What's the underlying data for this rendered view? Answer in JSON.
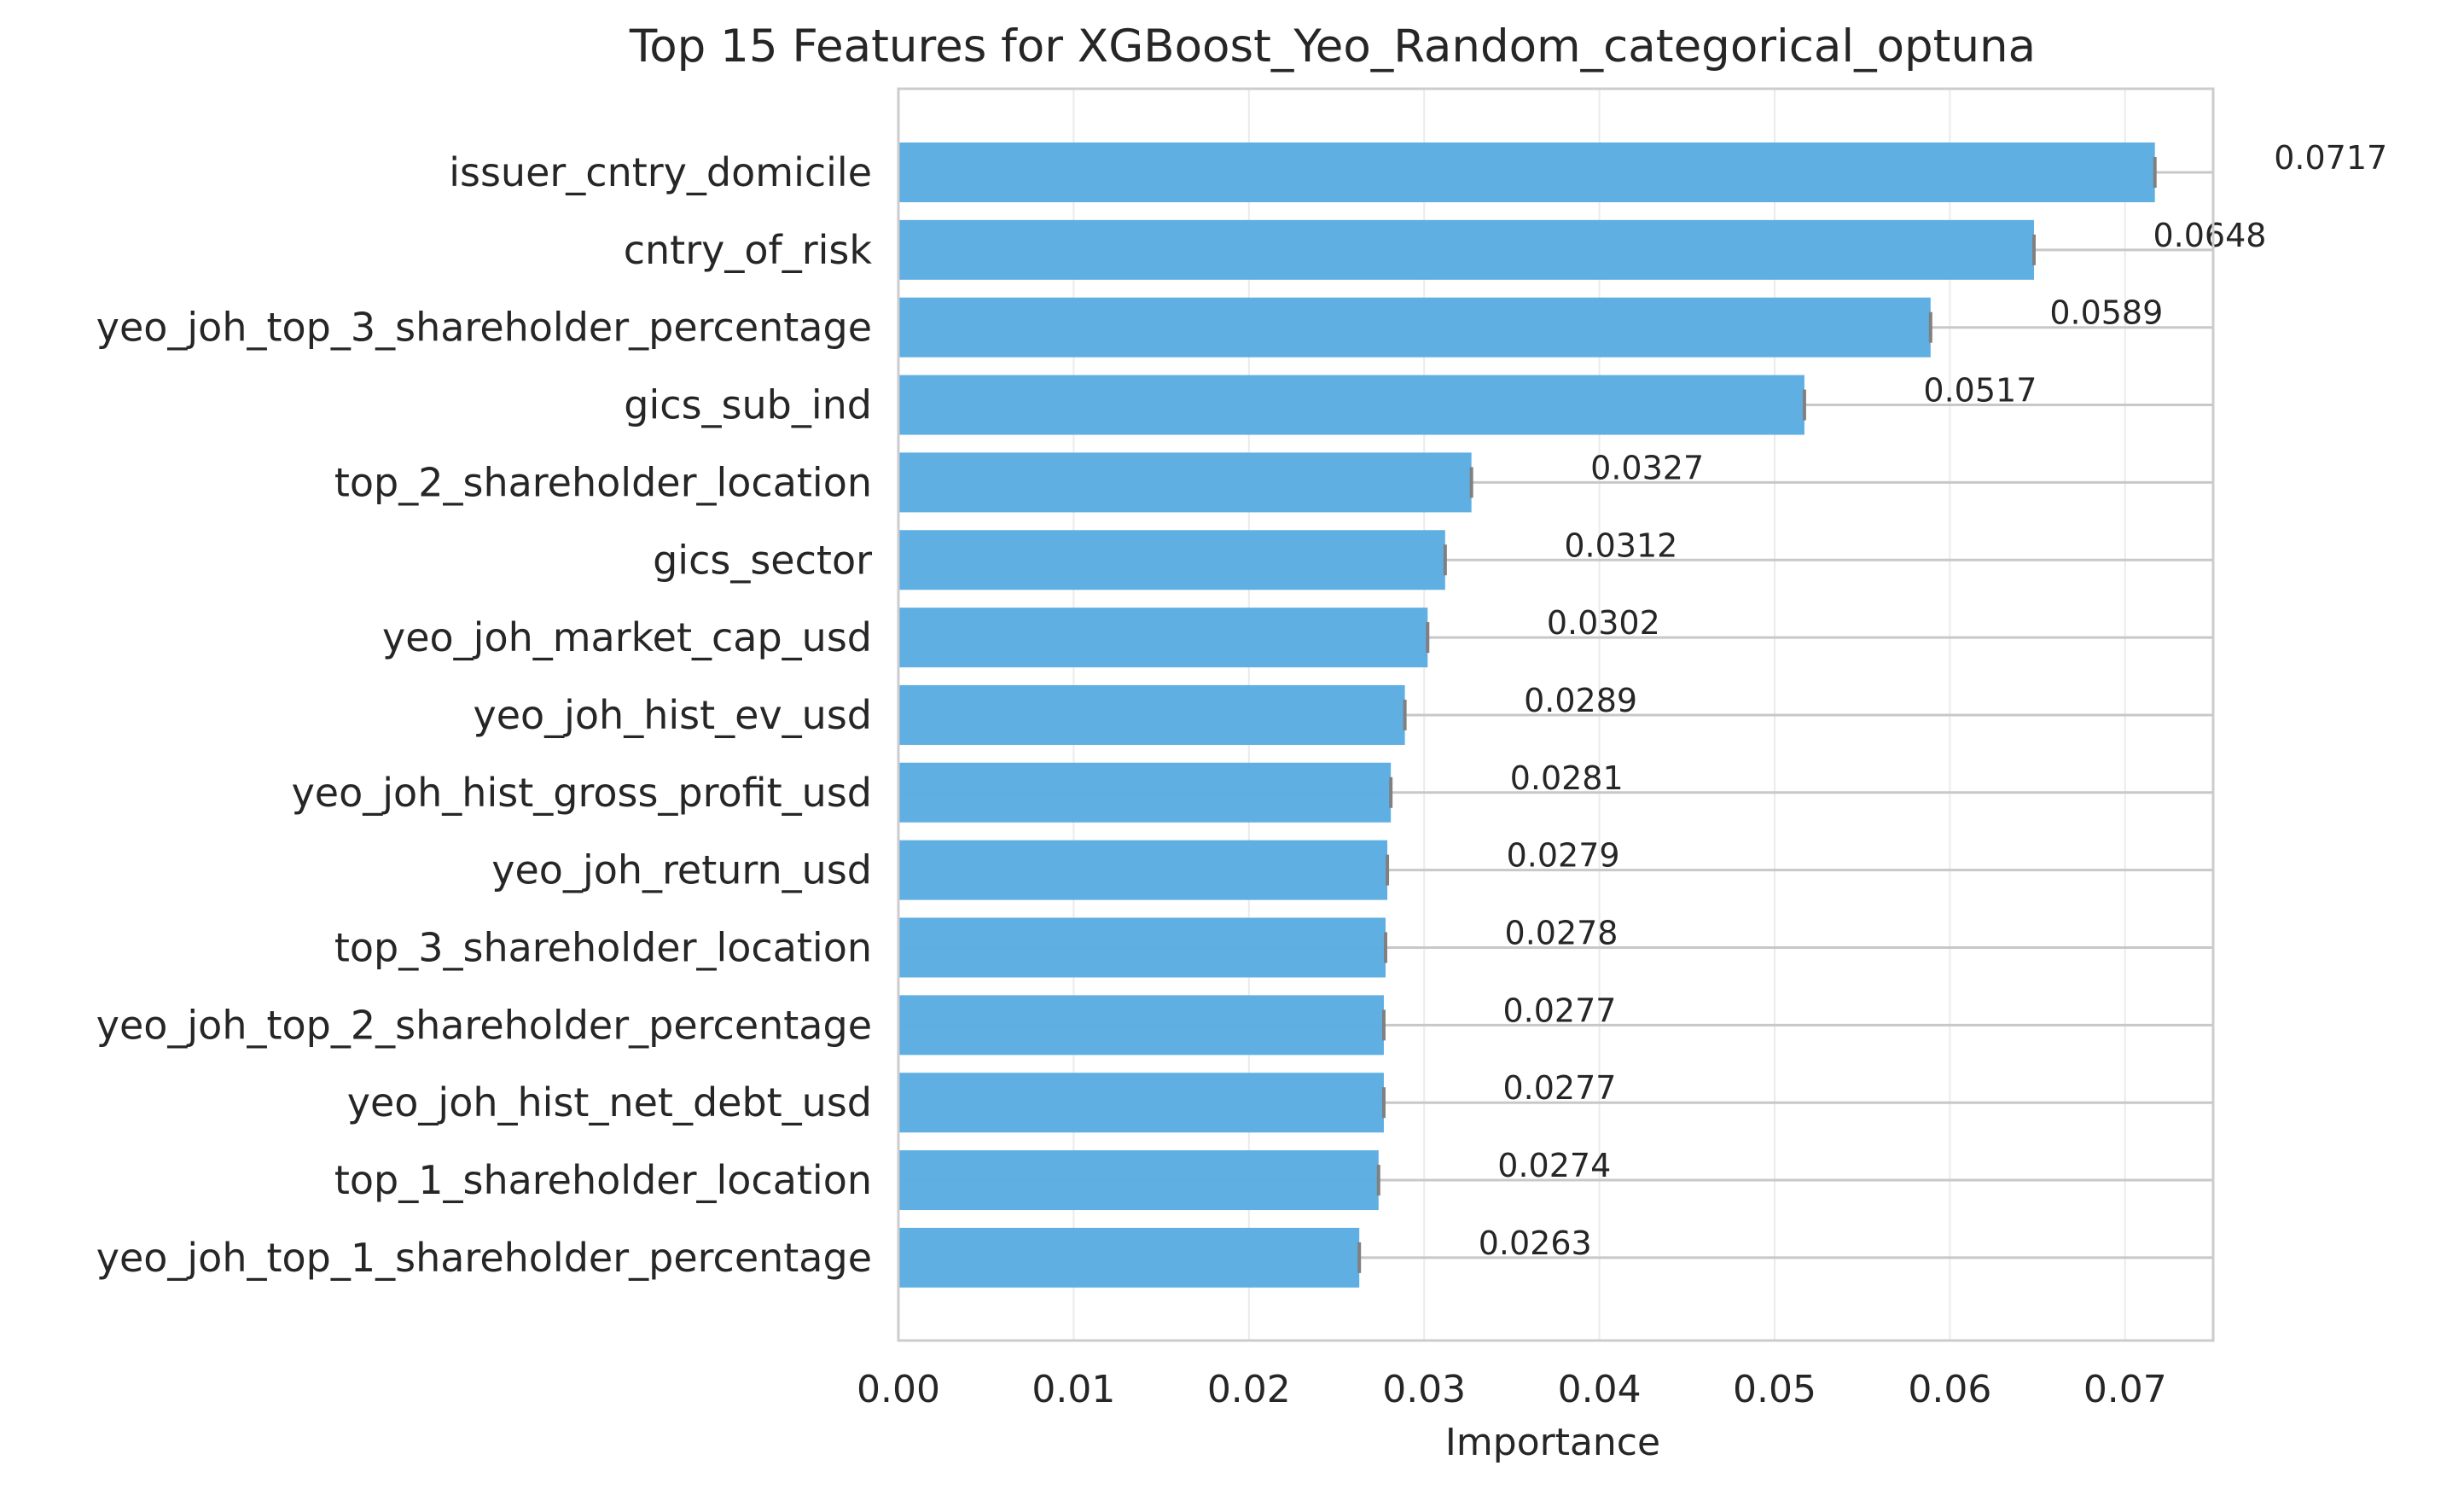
{
  "chart_data": {
    "type": "bar",
    "orientation": "horizontal",
    "title": "Top 15 Features for XGBoost_Yeo_Random_categorical_optuna",
    "xlabel": "Importance",
    "ylabel": "",
    "xlim": [
      0,
      0.075
    ],
    "xticks": [
      0.0,
      0.01,
      0.02,
      0.03,
      0.04,
      0.05,
      0.06,
      0.07
    ],
    "xtick_labels": [
      "0.00",
      "0.01",
      "0.02",
      "0.03",
      "0.04",
      "0.05",
      "0.06",
      "0.07"
    ],
    "grid": true,
    "bar_color": "#5DADE2",
    "error_bar_color": "#808080",
    "categories": [
      "issuer_cntry_domicile",
      "cntry_of_risk",
      "yeo_joh_top_3_shareholder_percentage",
      "gics_sub_ind",
      "top_2_shareholder_location",
      "gics_sector",
      "yeo_joh_market_cap_usd",
      "yeo_joh_hist_ev_usd",
      "yeo_joh_hist_gross_profit_usd",
      "yeo_joh_return_usd",
      "top_3_shareholder_location",
      "yeo_joh_top_2_shareholder_percentage",
      "yeo_joh_hist_net_debt_usd",
      "top_1_shareholder_location",
      "yeo_joh_top_1_shareholder_percentage"
    ],
    "values": [
      0.0717,
      0.0648,
      0.0589,
      0.0517,
      0.0327,
      0.0312,
      0.0302,
      0.0289,
      0.0281,
      0.0279,
      0.0278,
      0.0277,
      0.0277,
      0.0274,
      0.0263
    ],
    "value_labels": [
      "0.0717",
      "0.0648",
      "0.0589",
      "0.0517",
      "0.0327",
      "0.0312",
      "0.0302",
      "0.0289",
      "0.0281",
      "0.0279",
      "0.0278",
      "0.0277",
      "0.0277",
      "0.0274",
      "0.0263"
    ]
  }
}
